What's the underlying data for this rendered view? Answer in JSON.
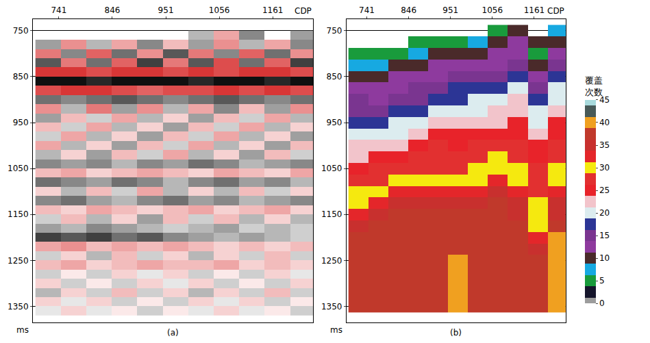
{
  "chart_data": [
    {
      "type": "heatmap",
      "title": "(a)",
      "xlabel": "CDP",
      "ylabel": "ms",
      "grid": true,
      "xlim": [
        690,
        1240
      ],
      "xticks": [
        741,
        846,
        951,
        1056,
        1161
      ],
      "ylim": [
        725,
        1385
      ],
      "yticks": [
        750,
        850,
        950,
        1050,
        1150,
        1250,
        1350
      ],
      "zlim": [
        -1,
        1
      ],
      "colors": [
        "#d42020",
        "#ffffff",
        "#101010"
      ],
      "x": [
        720,
        770,
        820,
        870,
        920,
        970,
        1020,
        1070,
        1120,
        1170,
        1220
      ],
      "y": [
        760,
        780,
        800,
        820,
        840,
        860,
        880,
        900,
        920,
        940,
        960,
        980,
        1000,
        1020,
        1040,
        1060,
        1080,
        1100,
        1120,
        1140,
        1160,
        1180,
        1200,
        1220,
        1240,
        1260,
        1280,
        1300,
        1320,
        1340,
        1360
      ],
      "z": [
        [
          null,
          null,
          null,
          null,
          null,
          null,
          0.3,
          -0.4,
          0.5,
          null,
          0.4
        ],
        [
          0.4,
          -0.5,
          0.3,
          -0.4,
          0.5,
          -0.3,
          0.4,
          -0.5,
          0.3,
          -0.4,
          0.5
        ],
        [
          -0.6,
          0.5,
          -0.7,
          0.6,
          -0.5,
          0.7,
          -0.6,
          0.5,
          -0.7,
          0.6,
          -0.5
        ],
        [
          0.7,
          -0.6,
          0.6,
          -0.7,
          0.8,
          -0.6,
          0.7,
          -0.8,
          0.6,
          -0.7,
          0.8
        ],
        [
          -0.9,
          -0.9,
          -0.8,
          -0.9,
          -0.9,
          -0.8,
          -0.9,
          -0.8,
          -0.9,
          -0.9,
          -0.8
        ],
        [
          1,
          1,
          0.9,
          1,
          1,
          1,
          0.9,
          1,
          1,
          0.9,
          1
        ],
        [
          -0.8,
          -0.9,
          -0.9,
          -0.8,
          -0.7,
          -0.8,
          -0.8,
          -0.9,
          -0.8,
          -0.9,
          -0.8
        ],
        [
          0.6,
          0.5,
          0.6,
          0.7,
          0.6,
          0.5,
          0.6,
          0.7,
          0.6,
          0.5,
          0.6
        ],
        [
          -0.5,
          0.3,
          -0.6,
          0.4,
          -0.5,
          0.3,
          -0.4,
          0.5,
          -0.3,
          0.4,
          -0.5
        ],
        [
          0.4,
          -0.3,
          0.2,
          -0.4,
          0.3,
          -0.2,
          0.4,
          -0.3,
          0.2,
          -0.4,
          0.3
        ],
        [
          -0.3,
          0.2,
          -0.4,
          0.3,
          -0.2,
          0.4,
          -0.3,
          0.2,
          -0.4,
          0.3,
          -0.2
        ],
        [
          0.2,
          -0.4,
          0.3,
          -0.2,
          0.4,
          -0.3,
          0.2,
          -0.4,
          0.3,
          -0.2,
          0.4
        ],
        [
          -0.4,
          0.3,
          -0.2,
          0.4,
          -0.3,
          0.2,
          -0.4,
          0.3,
          -0.2,
          0.4,
          -0.3
        ],
        [
          0.3,
          -0.2,
          0.4,
          -0.3,
          0.2,
          -0.4,
          0.3,
          -0.2,
          0.4,
          -0.3,
          0.2
        ],
        [
          0.5,
          0.4,
          0.5,
          0.3,
          0.5,
          0.4,
          0.6,
          0.5,
          0.3,
          0.4,
          0.5
        ],
        [
          -0.3,
          -0.4,
          -0.2,
          -0.3,
          -0.4,
          -0.3,
          -0.2,
          -0.4,
          -0.3,
          -0.2,
          -0.4
        ],
        [
          0.6,
          0.5,
          0.4,
          0.6,
          0.5,
          0.3,
          0.5,
          0.6,
          0.4,
          0.5,
          0.3
        ],
        [
          -0.2,
          0.3,
          -0.3,
          0.2,
          -0.4,
          0.3,
          -0.2,
          0.3,
          -0.3,
          0.2,
          -0.2
        ],
        [
          0.5,
          0.6,
          0.4,
          0.3,
          0.5,
          0.6,
          0.4,
          0.5,
          0.3,
          0.4,
          0.5
        ],
        [
          -0.3,
          -0.2,
          -0.4,
          -0.3,
          -0.2,
          -0.3,
          -0.4,
          -0.2,
          -0.3,
          -0.4,
          -0.2
        ],
        [
          0.2,
          -0.3,
          0.3,
          -0.2,
          0.4,
          -0.3,
          0.2,
          -0.3,
          0.3,
          -0.2,
          0.3
        ],
        [
          0.4,
          0.3,
          0.5,
          0.4,
          0.3,
          0.2,
          0.3,
          0.4,
          0.2,
          0.3,
          0.2
        ],
        [
          0.8,
          0.7,
          0.8,
          0.6,
          0.7,
          0.5,
          0.4,
          0.3,
          0.4,
          0.3,
          0.2
        ],
        [
          -0.4,
          -0.5,
          -0.3,
          -0.4,
          -0.3,
          -0.4,
          -0.3,
          -0.2,
          -0.3,
          -0.2,
          -0.3
        ],
        [
          0.2,
          -0.2,
          0.3,
          -0.3,
          0.2,
          -0.2,
          0.3,
          -0.2,
          0.2,
          -0.3,
          0.2
        ],
        [
          -0.3,
          -0.4,
          -0.2,
          -0.3,
          -0.4,
          -0.3,
          -0.3,
          -0.4,
          -0.2,
          -0.3,
          -0.2
        ],
        [
          0.2,
          -0.1,
          0.2,
          -0.2,
          0.1,
          -0.2,
          0.2,
          -0.1,
          0.2,
          -0.2,
          0.1
        ],
        [
          -0.2,
          0.2,
          -0.1,
          0.2,
          -0.2,
          0.1,
          -0.2,
          0.2,
          -0.1,
          0.2,
          -0.2
        ],
        [
          0.3,
          -0.2,
          0.2,
          -0.3,
          0.2,
          -0.2,
          0.3,
          -0.2,
          0.2,
          -0.3,
          0.2
        ],
        [
          -0.2,
          0.1,
          -0.2,
          0.2,
          -0.1,
          0.2,
          -0.2,
          0.1,
          -0.2,
          0.2,
          -0.1
        ],
        [
          0.1,
          -0.2,
          0.1,
          -0.1,
          0.2,
          -0.1,
          0.1,
          -0.2,
          0.1,
          -0.1,
          0.2
        ]
      ]
    },
    {
      "type": "heatmap",
      "title": "(b)",
      "xlabel": "CDP",
      "ylabel": "ms",
      "grid": true,
      "colorbar_title": "覆盖次数",
      "xlim": [
        690,
        1240
      ],
      "xticks": [
        741,
        846,
        951,
        1056,
        1161
      ],
      "ylim": [
        725,
        1385
      ],
      "yticks": [
        750,
        850,
        950,
        1050,
        1150,
        1250,
        1350
      ],
      "zlim": [
        0,
        45
      ],
      "zticks": [
        0,
        5,
        10,
        15,
        20,
        25,
        30,
        35,
        40,
        45
      ],
      "colors": [
        "#9c9c9c",
        "#15152b",
        "#199b3c",
        "#17a9e1",
        "#4a2a2a",
        "#8e3a9e",
        "#7a3590",
        "#2c3595",
        "#dcecef",
        "#f2c4cb",
        "#e8232a",
        "#e23030",
        "#f5e90f",
        "#e4262a",
        "#c8302e",
        "#c0392b",
        "#f0a020",
        "#485a58",
        "#a8dadc"
      ],
      "x": [
        720,
        770,
        820,
        870,
        920,
        970,
        1020,
        1070,
        1120,
        1170,
        1220
      ],
      "y": [
        750,
        775,
        800,
        825,
        850,
        875,
        900,
        925,
        950,
        975,
        1000,
        1025,
        1050,
        1075,
        1100,
        1125,
        1150,
        1175,
        1200,
        1225,
        1250,
        1275,
        1300,
        1325,
        1350
      ],
      "z": [
        [
          null,
          null,
          null,
          null,
          null,
          null,
          null,
          5,
          10,
          null,
          7.5
        ],
        [
          null,
          null,
          null,
          5,
          5,
          5,
          7.5,
          10,
          12.5,
          10,
          10
        ],
        [
          5,
          5,
          5,
          7.5,
          10,
          10,
          10,
          12.5,
          12.5,
          5,
          12.5
        ],
        [
          7.5,
          7.5,
          10,
          10,
          12.5,
          12.5,
          12.5,
          12.5,
          15,
          10,
          15
        ],
        [
          10,
          10,
          12.5,
          12.5,
          12.5,
          15,
          15,
          15,
          17.5,
          12.5,
          17.5
        ],
        [
          12.5,
          12.5,
          12.5,
          15,
          15,
          17.5,
          17.5,
          17.5,
          20,
          15,
          20
        ],
        [
          15,
          12.5,
          15,
          15,
          17.5,
          17.5,
          20,
          20,
          22.5,
          17.5,
          20
        ],
        [
          15,
          15,
          17.5,
          17.5,
          20,
          20,
          20,
          22.5,
          22.5,
          20,
          22.5
        ],
        [
          17.5,
          17.5,
          20,
          20,
          22.5,
          22.5,
          22.5,
          22.5,
          25,
          20,
          25
        ],
        [
          20,
          20,
          20,
          22.5,
          25,
          25,
          25,
          25,
          25,
          22.5,
          25
        ],
        [
          22.5,
          22.5,
          22.5,
          25,
          27.5,
          25,
          27.5,
          27.5,
          27.5,
          25,
          27.5
        ],
        [
          22.5,
          25,
          25,
          27.5,
          27.5,
          27.5,
          27.5,
          30,
          27.5,
          25,
          27.5
        ],
        [
          25,
          27.5,
          27.5,
          27.5,
          27.5,
          27.5,
          30,
          30,
          30,
          27.5,
          30
        ],
        [
          27.5,
          27.5,
          30,
          30,
          30,
          30,
          30,
          32.5,
          30,
          27.5,
          30
        ],
        [
          30,
          30,
          32.5,
          32.5,
          32.5,
          32.5,
          32.5,
          35,
          32.5,
          27.5,
          32.5
        ],
        [
          30,
          32.5,
          35,
          35,
          35,
          35,
          35,
          37.5,
          35,
          30,
          35
        ],
        [
          32.5,
          35,
          37.5,
          37.5,
          37.5,
          37.5,
          37.5,
          37.5,
          35,
          30,
          35
        ],
        [
          35,
          37.5,
          37.5,
          37.5,
          37.5,
          37.5,
          37.5,
          37.5,
          37.5,
          30,
          37.5
        ],
        [
          37.5,
          37.5,
          37.5,
          37.5,
          37.5,
          37.5,
          37.5,
          37.5,
          37.5,
          32.5,
          40
        ],
        [
          37.5,
          37.5,
          37.5,
          37.5,
          37.5,
          37.5,
          37.5,
          37.5,
          37.5,
          35,
          40
        ],
        [
          37.5,
          37.5,
          37.5,
          37.5,
          37.5,
          40,
          37.5,
          37.5,
          37.5,
          37.5,
          40
        ],
        [
          37.5,
          37.5,
          37.5,
          37.5,
          37.5,
          40,
          37.5,
          37.5,
          37.5,
          37.5,
          40
        ],
        [
          37.5,
          37.5,
          37.5,
          37.5,
          37.5,
          40,
          37.5,
          37.5,
          37.5,
          37.5,
          40
        ],
        [
          37.5,
          37.5,
          37.5,
          37.5,
          37.5,
          40,
          37.5,
          37.5,
          37.5,
          37.5,
          40
        ],
        [
          37.5,
          37.5,
          37.5,
          37.5,
          37.5,
          40,
          37.5,
          37.5,
          37.5,
          37.5,
          40
        ]
      ]
    }
  ]
}
